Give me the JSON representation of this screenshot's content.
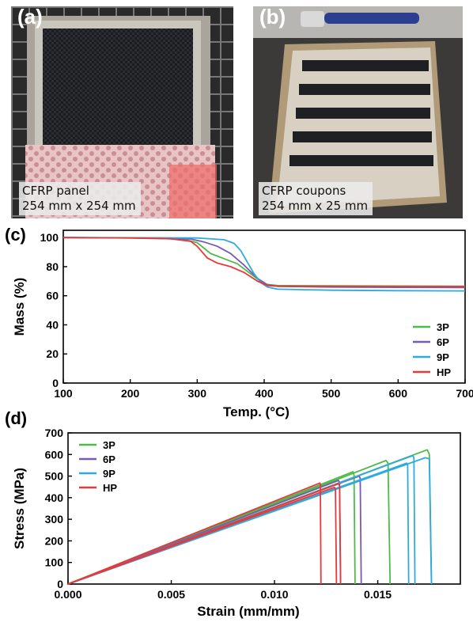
{
  "panels": {
    "a": {
      "letter": "(a)",
      "caption_line1": "CFRP panel",
      "caption_line2": "254 mm x 254 mm"
    },
    "b": {
      "letter": "(b)",
      "caption_line1": "CFRP coupons",
      "caption_line2": "254 mm x 25 mm"
    }
  },
  "colors": {
    "3P": "#4cbb47",
    "6P": "#7b58b3",
    "9P": "#2eaae1",
    "HP": "#e53a3a"
  },
  "chart_data": [
    {
      "panel_label": "(c)",
      "type": "line",
      "xlabel": "Temp. (°C)",
      "ylabel": "Mass (%)",
      "xlim": [
        100,
        700
      ],
      "ylim": [
        0,
        105
      ],
      "xticks": [
        100,
        200,
        300,
        400,
        500,
        600,
        700
      ],
      "yticks": [
        0,
        20,
        40,
        60,
        80,
        100
      ],
      "grid": false,
      "legend_position": "lower-right",
      "series": [
        {
          "name": "3P",
          "color": "#4cbb47",
          "x": [
            100,
            200,
            250,
            280,
            300,
            320,
            340,
            360,
            380,
            400,
            420,
            500,
            600,
            700
          ],
          "y": [
            100,
            99.7,
            99.3,
            98.8,
            96.5,
            89,
            85.5,
            82,
            75,
            68,
            67,
            66.8,
            66.7,
            66.6
          ]
        },
        {
          "name": "6P",
          "color": "#7b58b3",
          "x": [
            100,
            200,
            250,
            290,
            310,
            330,
            350,
            370,
            390,
            405,
            420,
            500,
            600,
            700
          ],
          "y": [
            100,
            99.8,
            99.6,
            99,
            97,
            94,
            89,
            81,
            72,
            67.5,
            66.5,
            66,
            65.8,
            65.6
          ]
        },
        {
          "name": "9P",
          "color": "#2eaae1",
          "x": [
            100,
            200,
            300,
            340,
            355,
            365,
            375,
            385,
            395,
            405,
            420,
            500,
            600,
            700
          ],
          "y": [
            100,
            99.9,
            99.7,
            98.5,
            96,
            91,
            83,
            75,
            69,
            66,
            64.5,
            63.8,
            63.5,
            63.3
          ]
        },
        {
          "name": "HP",
          "color": "#e53a3a",
          "x": [
            100,
            200,
            260,
            290,
            300,
            315,
            330,
            350,
            370,
            390,
            405,
            420,
            500,
            600,
            700
          ],
          "y": [
            100,
            99.7,
            99.2,
            97.5,
            94,
            86,
            82.5,
            80,
            76,
            70,
            67,
            66.6,
            66.5,
            66.4,
            66.4
          ]
        }
      ]
    },
    {
      "panel_label": "(d)",
      "type": "line",
      "xlabel": "Strain (mm/mm)",
      "ylabel": "Stress (MPa)",
      "xlim": [
        0,
        0.019
      ],
      "ylim": [
        0,
        700
      ],
      "xticks": [
        0.0,
        0.005,
        0.01,
        0.015
      ],
      "xtick_labels": [
        "0.000",
        "0.005",
        "0.010",
        "0.015"
      ],
      "yticks": [
        0,
        100,
        200,
        300,
        400,
        500,
        600,
        700
      ],
      "grid": false,
      "legend_position": "top-left",
      "series": [
        {
          "name": "3P",
          "color": "#4cbb47",
          "curves": [
            {
              "x": [
                0,
                0.0174,
                0.0175,
                0.0176
              ],
              "y": [
                0,
                622,
                600,
                0
              ]
            },
            {
              "x": [
                0,
                0.0154,
                0.0155,
                0.0156
              ],
              "y": [
                0,
                572,
                560,
                0
              ]
            },
            {
              "x": [
                0,
                0.0138,
                0.01385,
                0.0139
              ],
              "y": [
                0,
                520,
                505,
                0
              ]
            }
          ]
        },
        {
          "name": "6P",
          "color": "#7b58b3",
          "curves": [
            {
              "x": [
                0,
                0.0141,
                0.01415,
                0.0142
              ],
              "y": [
                0,
                500,
                490,
                0
              ]
            },
            {
              "x": [
                0,
                0.0131,
                0.01315,
                0.0132
              ],
              "y": [
                0,
                480,
                470,
                0
              ]
            }
          ]
        },
        {
          "name": "9P",
          "color": "#2eaae1",
          "curves": [
            {
              "x": [
                0,
                0.0167,
                0.01675,
                0.0168
              ],
              "y": [
                0,
                595,
                585,
                0
              ]
            },
            {
              "x": [
                0,
                0.0164,
                0.01645,
                0.0165
              ],
              "y": [
                0,
                560,
                550,
                0
              ]
            },
            {
              "x": [
                0,
                0.0173,
                0.0175,
                0.0176
              ],
              "y": [
                0,
                585,
                580,
                0
              ]
            }
          ]
        },
        {
          "name": "HP",
          "color": "#e53a3a",
          "curves": [
            {
              "x": [
                0,
                0.0122,
                0.01222,
                0.01225
              ],
              "y": [
                0,
                468,
                460,
                0
              ]
            },
            {
              "x": [
                0,
                0.0129,
                0.01295,
                0.013
              ],
              "y": [
                0,
                448,
                440,
                0
              ]
            },
            {
              "x": [
                0,
                0.0131,
                0.01315,
                0.0132
              ],
              "y": [
                0,
                465,
                455,
                0
              ]
            }
          ]
        }
      ]
    }
  ]
}
